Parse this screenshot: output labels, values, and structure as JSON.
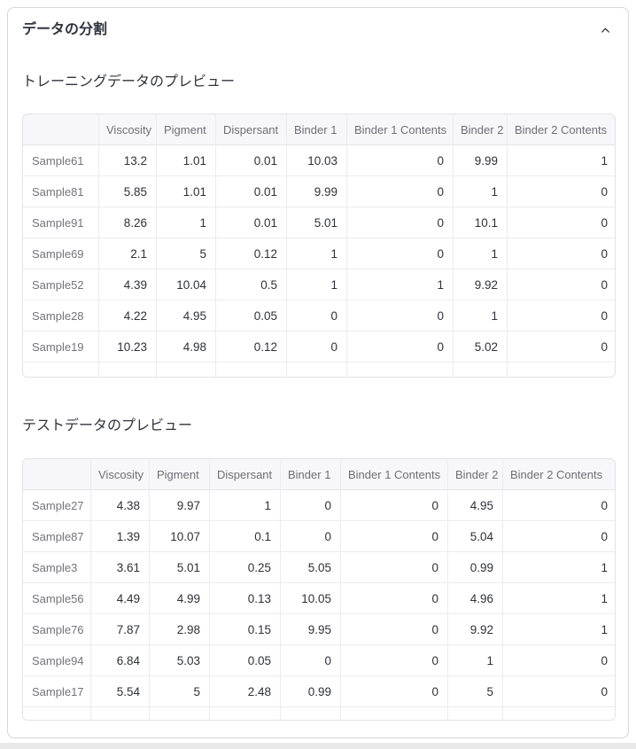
{
  "expander": {
    "title": "データの分割",
    "state": "expanded",
    "collapse_icon": "chevron-up"
  },
  "sections": [
    {
      "title": "トレーニングデータのプレビュー",
      "table": {
        "headers": [
          "",
          "Viscosity",
          "Pigment",
          "Dispersant",
          "Binder 1",
          "Binder 1 Contents",
          "Binder 2",
          "Binder 2 Contents"
        ],
        "rows": [
          {
            "label": "Sample61",
            "values": [
              "13.2",
              "1.01",
              "0.01",
              "10.03",
              "0",
              "9.99",
              "1"
            ]
          },
          {
            "label": "Sample81",
            "values": [
              "5.85",
              "1.01",
              "0.01",
              "9.99",
              "0",
              "1",
              "0"
            ]
          },
          {
            "label": "Sample91",
            "values": [
              "8.26",
              "1",
              "0.01",
              "5.01",
              "0",
              "10.1",
              "0"
            ]
          },
          {
            "label": "Sample69",
            "values": [
              "2.1",
              "5",
              "0.12",
              "1",
              "0",
              "1",
              "0"
            ]
          },
          {
            "label": "Sample52",
            "values": [
              "4.39",
              "10.04",
              "0.5",
              "1",
              "1",
              "9.92",
              "0"
            ]
          },
          {
            "label": "Sample28",
            "values": [
              "4.22",
              "4.95",
              "0.05",
              "0",
              "0",
              "1",
              "0"
            ]
          },
          {
            "label": "Sample19",
            "values": [
              "10.23",
              "4.98",
              "0.12",
              "0",
              "0",
              "5.02",
              "0"
            ]
          }
        ]
      }
    },
    {
      "title": "テストデータのプレビュー",
      "table": {
        "headers": [
          "",
          "Viscosity",
          "Pigment",
          "Dispersant",
          "Binder 1",
          "Binder 1 Contents",
          "Binder 2",
          "Binder 2 Contents"
        ],
        "rows": [
          {
            "label": "Sample27",
            "values": [
              "4.38",
              "9.97",
              "1",
              "0",
              "0",
              "4.95",
              "0"
            ]
          },
          {
            "label": "Sample87",
            "values": [
              "1.39",
              "10.07",
              "0.1",
              "0",
              "0",
              "5.04",
              "0"
            ]
          },
          {
            "label": "Sample3",
            "values": [
              "3.61",
              "5.01",
              "0.25",
              "5.05",
              "0",
              "0.99",
              "1"
            ]
          },
          {
            "label": "Sample56",
            "values": [
              "4.49",
              "4.99",
              "0.13",
              "10.05",
              "0",
              "4.96",
              "1"
            ]
          },
          {
            "label": "Sample76",
            "values": [
              "7.87",
              "2.98",
              "0.15",
              "9.95",
              "0",
              "9.92",
              "1"
            ]
          },
          {
            "label": "Sample94",
            "values": [
              "6.84",
              "5.03",
              "0.05",
              "0",
              "0",
              "1",
              "0"
            ]
          },
          {
            "label": "Sample17",
            "values": [
              "5.54",
              "5",
              "2.48",
              "0.99",
              "0",
              "5",
              "0"
            ]
          }
        ]
      }
    }
  ],
  "colors": {
    "text": "#31333F",
    "muted_text": "#6e6e78",
    "table_header_bg": "#f7f7f9",
    "table_border": "#e2e2e8",
    "gridline": "#ececf0",
    "card_border": "#d5d6da"
  }
}
